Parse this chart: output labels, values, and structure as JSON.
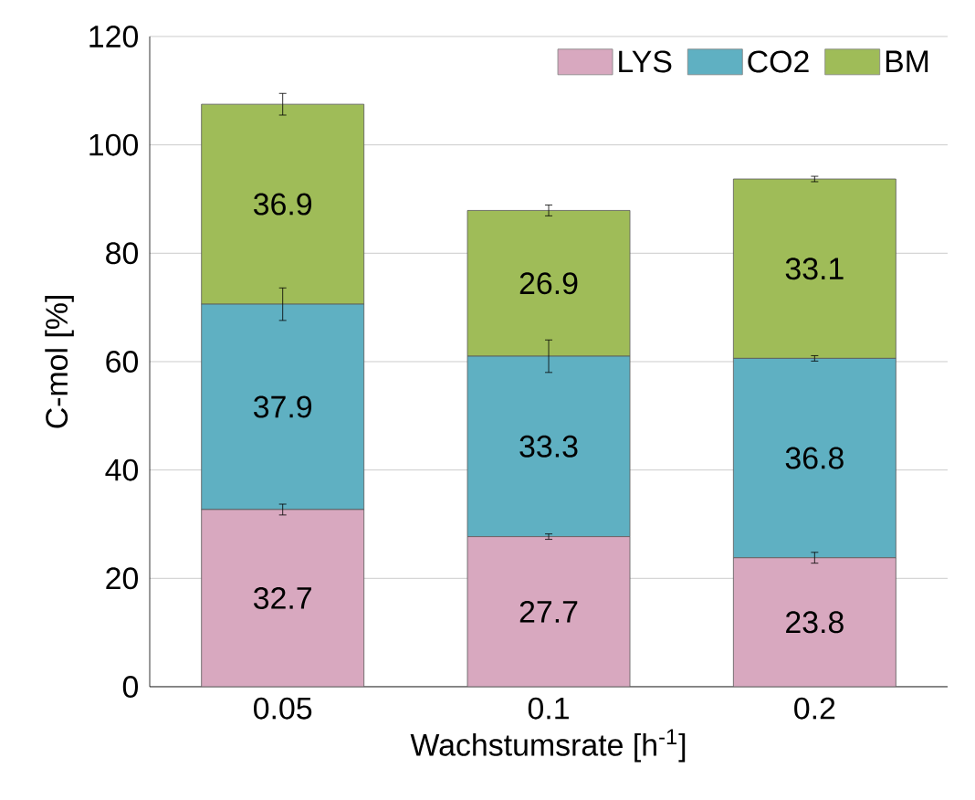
{
  "chart_data": {
    "type": "bar",
    "stacked": true,
    "xlabel": "Wachstumsrate [h$^{-1}$]",
    "ylabel": "C-mol [%]",
    "categories": [
      "0.05",
      "0.1",
      "0.2"
    ],
    "series": [
      {
        "name": "LYS",
        "color": "#d8a8bf",
        "values": [
          32.7,
          27.7,
          23.8
        ],
        "errors": [
          1,
          0.5,
          1
        ]
      },
      {
        "name": "CO2",
        "color": "#5fb0c2",
        "values": [
          37.9,
          33.3,
          36.8
        ],
        "errors": [
          3,
          3,
          0.5
        ]
      },
      {
        "name": "BM",
        "color": "#9fbc58",
        "values": [
          36.9,
          26.9,
          33.1
        ],
        "errors": [
          2,
          1,
          0.5
        ]
      }
    ],
    "ylim": [
      0,
      120
    ],
    "yticks": [
      0,
      20,
      40,
      60,
      80,
      100,
      120
    ],
    "grid": "y",
    "legend": "top right",
    "data_labels": true
  }
}
